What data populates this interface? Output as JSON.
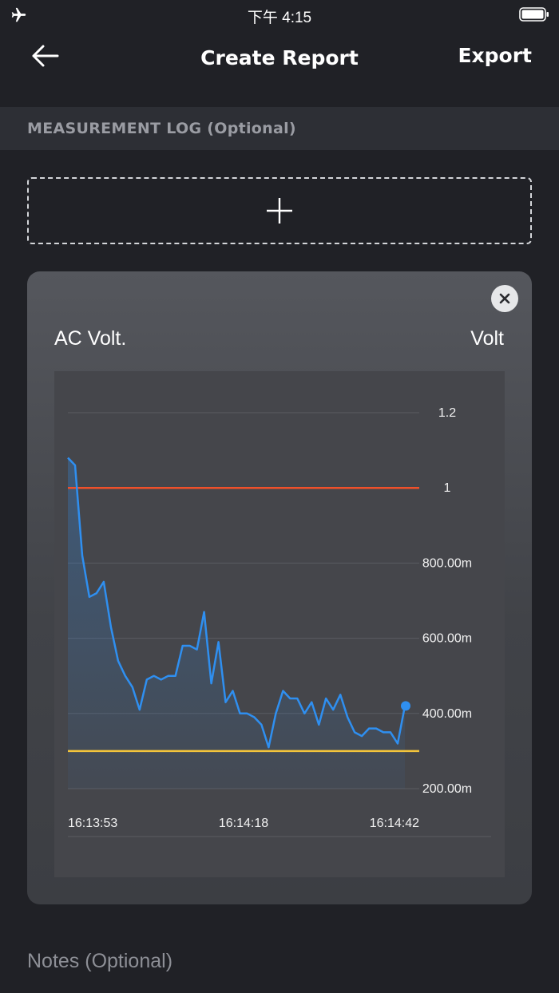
{
  "status_bar": {
    "time": "下午 4:15",
    "icons": [
      "airplane-icon",
      "battery-icon"
    ]
  },
  "nav": {
    "title": "Create Report",
    "export_label": "Export",
    "back_icon": "arrow-left-icon"
  },
  "section": {
    "header": "MEASUREMENT LOG (Optional)"
  },
  "add_button": {
    "icon": "plus-icon"
  },
  "card": {
    "label": "AC Volt.",
    "unit": "Volt",
    "close_icon": "close-icon"
  },
  "notes": {
    "label": "Notes (Optional)"
  },
  "colors": {
    "line": "#2f8ff0",
    "upper_limit": "#f0502a",
    "lower_limit": "#f3c43b",
    "background": "#202126"
  },
  "chart_data": {
    "type": "line",
    "title": "",
    "ylabel": "",
    "y_unit": "Volt",
    "y_ticks": [
      {
        "value": 1.2,
        "label": "1.2"
      },
      {
        "value": 1.0,
        "label": "1"
      },
      {
        "value": 0.8,
        "label": "800.00m"
      },
      {
        "value": 0.6,
        "label": "600.00m"
      },
      {
        "value": 0.4,
        "label": "400.00m"
      },
      {
        "value": 0.2,
        "label": "200.00m"
      }
    ],
    "ylim": [
      0.2,
      1.2
    ],
    "x_ticks": [
      "16:13:53",
      "16:14:18",
      "16:14:42"
    ],
    "upper_limit": 1.0,
    "lower_limit": 0.3,
    "grid": true,
    "series": [
      {
        "values": [
          1.08,
          1.06,
          0.82,
          0.71,
          0.72,
          0.75,
          0.63,
          0.54,
          0.5,
          0.47,
          0.41,
          0.49,
          0.5,
          0.49,
          0.5,
          0.5,
          0.58,
          0.58,
          0.57,
          0.67,
          0.48,
          0.59,
          0.43,
          0.46,
          0.4,
          0.4,
          0.39,
          0.37,
          0.31,
          0.4,
          0.46,
          0.44,
          0.44,
          0.4,
          0.43,
          0.37,
          0.44,
          0.41,
          0.45,
          0.39,
          0.35,
          0.34,
          0.36,
          0.36,
          0.35,
          0.35,
          0.32,
          0.42
        ]
      }
    ]
  }
}
